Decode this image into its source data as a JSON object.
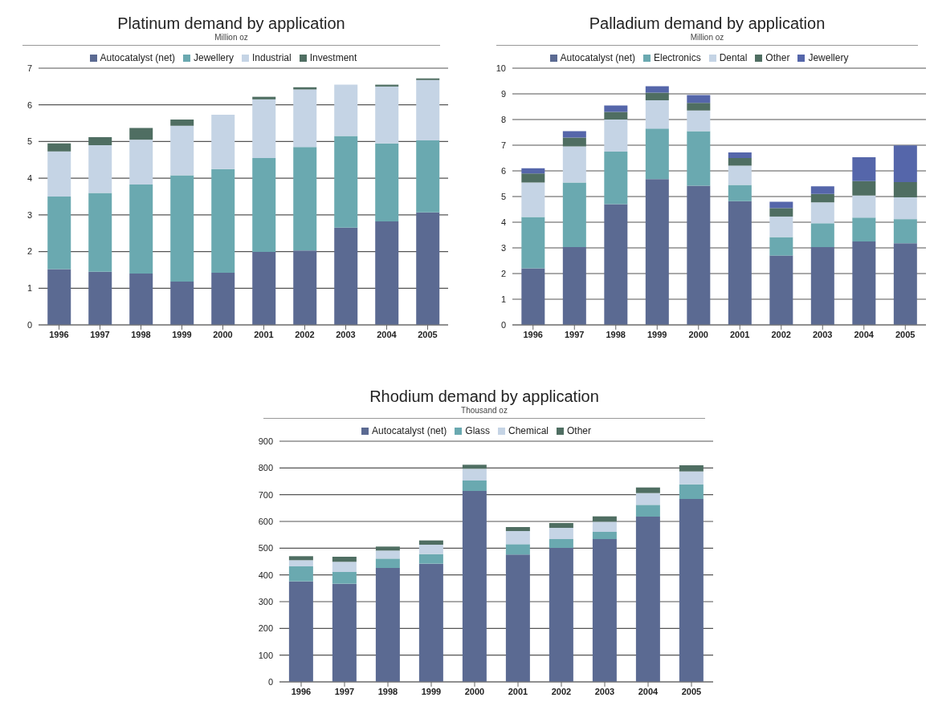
{
  "chart_data": [
    {
      "type": "bar",
      "title": "Platinum demand by application",
      "subtitle": "Million oz",
      "stacked": true,
      "grid": "y",
      "legend": "top",
      "categories": [
        "1996",
        "1997",
        "1998",
        "1999",
        "2000",
        "2001",
        "2002",
        "2003",
        "2004",
        "2005"
      ],
      "ylim": [
        0,
        7
      ],
      "yticks": [
        0,
        1,
        2,
        3,
        4,
        5,
        6,
        7
      ],
      "series": [
        {
          "name": "Autocatalyst (net)",
          "color": "#5b6a92",
          "values": [
            1.52,
            1.45,
            1.4,
            1.18,
            1.42,
            1.99,
            2.03,
            2.65,
            2.82,
            3.07
          ]
        },
        {
          "name": "Jewellery",
          "color": "#6aa9b0",
          "values": [
            1.98,
            2.15,
            2.43,
            2.9,
            2.83,
            2.56,
            2.82,
            2.5,
            2.13,
            1.96
          ]
        },
        {
          "name": "Industrial",
          "color": "#c5d4e5",
          "values": [
            1.23,
            1.3,
            1.22,
            1.35,
            1.48,
            1.6,
            1.57,
            1.4,
            1.55,
            1.65
          ]
        },
        {
          "name": "Investment",
          "color": "#4f6e62",
          "values": [
            0.22,
            0.22,
            0.32,
            0.17,
            0,
            0.07,
            0.06,
            0,
            0.05,
            0.04
          ]
        }
      ]
    },
    {
      "type": "bar",
      "title": "Palladium demand by application",
      "subtitle": "Million oz",
      "stacked": true,
      "grid": "y",
      "legend": "top",
      "categories": [
        "1996",
        "1997",
        "1998",
        "1999",
        "2000",
        "2001",
        "2002",
        "2003",
        "2004",
        "2005"
      ],
      "ylim": [
        0,
        10
      ],
      "yticks": [
        0,
        1,
        2,
        3,
        4,
        5,
        6,
        7,
        8,
        9,
        10
      ],
      "series": [
        {
          "name": "Autocatalyst (net)",
          "color": "#5b6a92",
          "values": [
            2.2,
            3.03,
            4.7,
            5.68,
            5.42,
            4.82,
            2.7,
            3.03,
            3.25,
            3.18
          ]
        },
        {
          "name": "Electronics",
          "color": "#6aa9b0",
          "values": [
            2.0,
            2.52,
            2.05,
            1.97,
            2.13,
            0.63,
            0.72,
            0.93,
            0.93,
            0.94
          ]
        },
        {
          "name": "Dental",
          "color": "#c5d4e5",
          "values": [
            1.35,
            1.4,
            1.25,
            1.1,
            0.8,
            0.75,
            0.8,
            0.81,
            0.86,
            0.85
          ]
        },
        {
          "name": "Other",
          "color": "#4f6e62",
          "values": [
            0.35,
            0.35,
            0.3,
            0.3,
            0.3,
            0.3,
            0.33,
            0.33,
            0.56,
            0.59
          ]
        },
        {
          "name": "Jewellery",
          "color": "#5566aa",
          "values": [
            0.2,
            0.25,
            0.25,
            0.25,
            0.3,
            0.22,
            0.25,
            0.3,
            0.93,
            1.43
          ]
        }
      ]
    },
    {
      "type": "bar",
      "title": "Rhodium demand by application",
      "subtitle": "Thousand oz",
      "stacked": true,
      "grid": "y",
      "legend": "top",
      "categories": [
        "1996",
        "1997",
        "1998",
        "1999",
        "2000",
        "2001",
        "2002",
        "2003",
        "2004",
        "2005"
      ],
      "ylim": [
        0,
        900
      ],
      "yticks": [
        0,
        100,
        200,
        300,
        400,
        500,
        600,
        700,
        800,
        900
      ],
      "series": [
        {
          "name": "Autocatalyst (net)",
          "color": "#5b6a92",
          "values": [
            376,
            367,
            426,
            442,
            714,
            476,
            501,
            534,
            618,
            684
          ]
        },
        {
          "name": "Glass",
          "color": "#6aa9b0",
          "values": [
            56,
            44,
            35,
            36,
            39,
            39,
            33,
            27,
            44,
            55
          ]
        },
        {
          "name": "Chemical",
          "color": "#c5d4e5",
          "values": [
            23,
            38,
            30,
            35,
            44,
            49,
            42,
            38,
            44,
            48
          ]
        },
        {
          "name": "Other",
          "color": "#4f6e62",
          "values": [
            15,
            19,
            15,
            16,
            15,
            15,
            18,
            20,
            21,
            23
          ]
        }
      ]
    }
  ]
}
